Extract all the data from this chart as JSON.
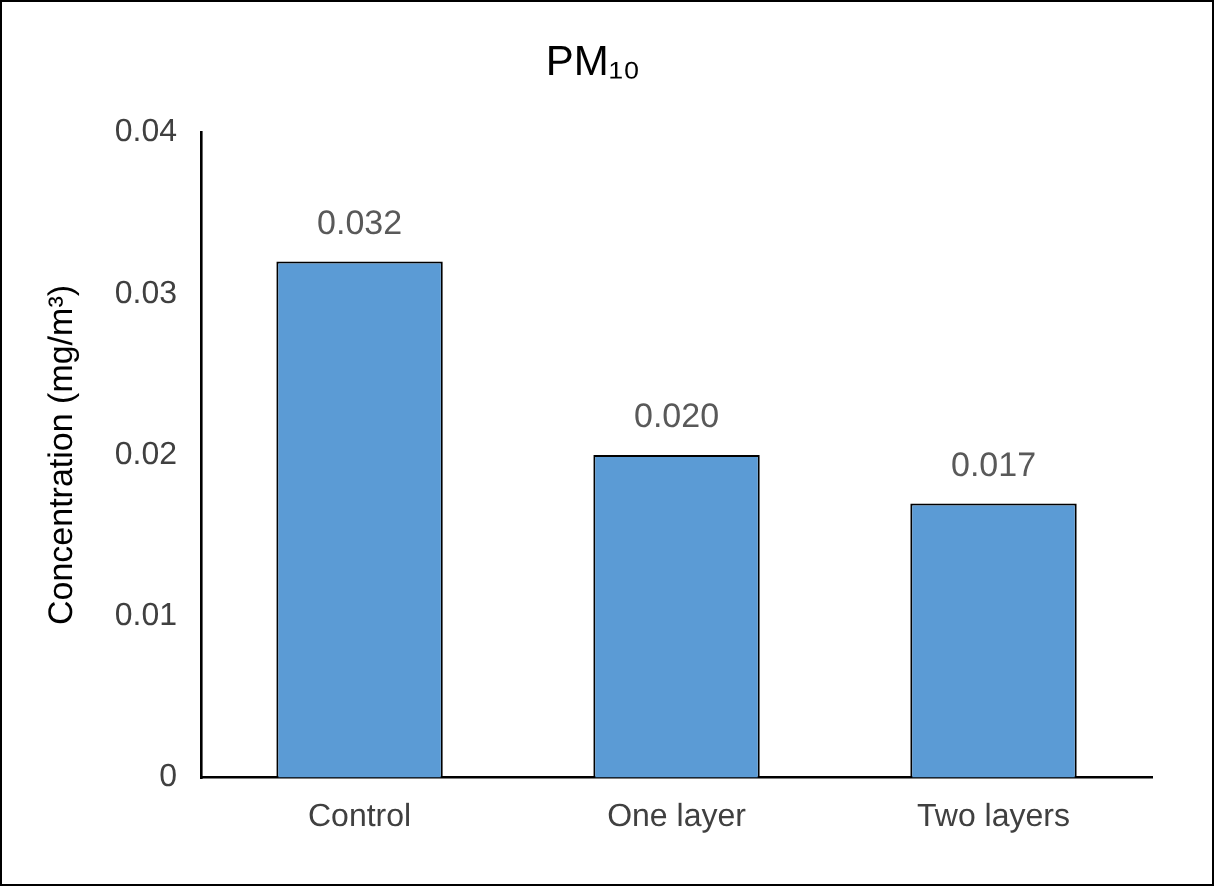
{
  "chart_data": {
    "type": "bar",
    "title": "PM₁₀",
    "ylabel": "Concentration (mg/m³)",
    "categories": [
      "Control",
      "One layer",
      "Two layers"
    ],
    "values": [
      0.032,
      0.02,
      0.017
    ],
    "color": "#5b9bd5",
    "value_labels": [
      "0.032",
      "0.020",
      "0.017"
    ],
    "ylim": [
      0,
      0.04
    ],
    "yticks": [
      0,
      0.01,
      0.02,
      0.03,
      0.04
    ],
    "grid": false,
    "legend": false
  }
}
